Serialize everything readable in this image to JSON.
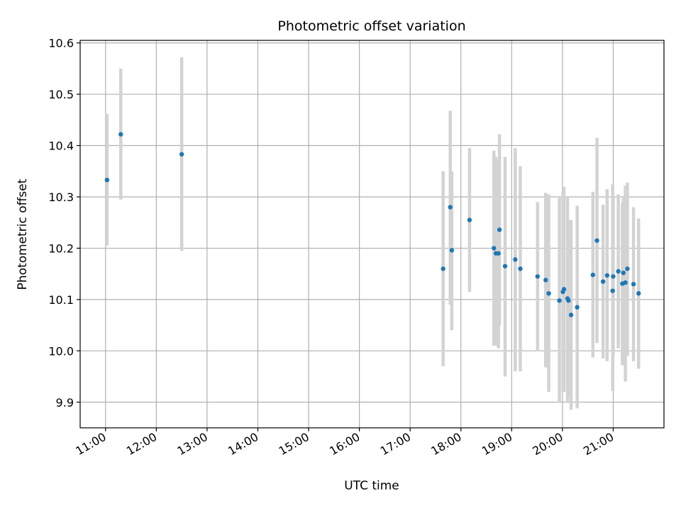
{
  "chart_data": {
    "type": "scatter",
    "title": "Photometric offset variation",
    "xlabel": "UTC time",
    "ylabel": "Photometric offset",
    "x_unit": "hours UTC",
    "xlim": [
      10.5,
      22.0
    ],
    "ylim": [
      9.85,
      10.605
    ],
    "grid": true,
    "x_ticks": [
      {
        "value": 11,
        "label": "11:00"
      },
      {
        "value": 12,
        "label": "12:00"
      },
      {
        "value": 13,
        "label": "13:00"
      },
      {
        "value": 14,
        "label": "14:00"
      },
      {
        "value": 15,
        "label": "15:00"
      },
      {
        "value": 16,
        "label": "16:00"
      },
      {
        "value": 17,
        "label": "17:00"
      },
      {
        "value": 18,
        "label": "18:00"
      },
      {
        "value": 19,
        "label": "19:00"
      },
      {
        "value": 20,
        "label": "20:00"
      },
      {
        "value": 21,
        "label": "21:00"
      }
    ],
    "y_ticks": [
      {
        "value": 9.9,
        "label": "9.9"
      },
      {
        "value": 10.0,
        "label": "10.0"
      },
      {
        "value": 10.1,
        "label": "10.1"
      },
      {
        "value": 10.2,
        "label": "10.2"
      },
      {
        "value": 10.3,
        "label": "10.3"
      },
      {
        "value": 10.4,
        "label": "10.4"
      },
      {
        "value": 10.5,
        "label": "10.5"
      },
      {
        "value": 10.6,
        "label": "10.6"
      }
    ],
    "colors": {
      "point": "#1f77b4",
      "errorbar": "#d3d3d3",
      "grid": "#b0b0b0"
    },
    "points": [
      {
        "x": 11.03,
        "y": 10.333,
        "ylo": 10.205,
        "yhi": 10.462
      },
      {
        "x": 11.3,
        "y": 10.422,
        "ylo": 10.295,
        "yhi": 10.55
      },
      {
        "x": 12.5,
        "y": 10.383,
        "ylo": 10.195,
        "yhi": 10.572
      },
      {
        "x": 17.65,
        "y": 10.16,
        "ylo": 9.97,
        "yhi": 10.35
      },
      {
        "x": 17.79,
        "y": 10.28,
        "ylo": 10.09,
        "yhi": 10.468
      },
      {
        "x": 17.82,
        "y": 10.196,
        "ylo": 10.04,
        "yhi": 10.35
      },
      {
        "x": 18.17,
        "y": 10.255,
        "ylo": 10.115,
        "yhi": 10.395
      },
      {
        "x": 18.65,
        "y": 10.2,
        "ylo": 10.01,
        "yhi": 10.39
      },
      {
        "x": 18.69,
        "y": 10.19,
        "ylo": 10.01,
        "yhi": 10.378
      },
      {
        "x": 18.74,
        "y": 10.19,
        "ylo": 10.005,
        "yhi": 10.37
      },
      {
        "x": 18.76,
        "y": 10.236,
        "ylo": 10.05,
        "yhi": 10.422
      },
      {
        "x": 18.87,
        "y": 10.165,
        "ylo": 9.95,
        "yhi": 10.378
      },
      {
        "x": 19.07,
        "y": 10.178,
        "ylo": 9.96,
        "yhi": 10.395
      },
      {
        "x": 19.17,
        "y": 10.16,
        "ylo": 9.96,
        "yhi": 10.36
      },
      {
        "x": 19.51,
        "y": 10.145,
        "ylo": 10.0,
        "yhi": 10.29
      },
      {
        "x": 19.67,
        "y": 10.138,
        "ylo": 9.968,
        "yhi": 10.308
      },
      {
        "x": 19.73,
        "y": 10.112,
        "ylo": 9.92,
        "yhi": 10.305
      },
      {
        "x": 19.94,
        "y": 10.098,
        "ylo": 9.9,
        "yhi": 10.298
      },
      {
        "x": 20.01,
        "y": 10.115,
        "ylo": 9.92,
        "yhi": 10.31
      },
      {
        "x": 20.03,
        "y": 10.12,
        "ylo": 9.92,
        "yhi": 10.32
      },
      {
        "x": 20.1,
        "y": 10.102,
        "ylo": 9.9,
        "yhi": 10.3
      },
      {
        "x": 20.12,
        "y": 10.098,
        "ylo": 9.91,
        "yhi": 10.255
      },
      {
        "x": 20.17,
        "y": 10.07,
        "ylo": 9.885,
        "yhi": 10.255
      },
      {
        "x": 20.29,
        "y": 10.085,
        "ylo": 9.888,
        "yhi": 10.283
      },
      {
        "x": 20.6,
        "y": 10.148,
        "ylo": 9.987,
        "yhi": 10.31
      },
      {
        "x": 20.68,
        "y": 10.215,
        "ylo": 10.015,
        "yhi": 10.415
      },
      {
        "x": 20.8,
        "y": 10.135,
        "ylo": 9.985,
        "yhi": 10.285
      },
      {
        "x": 20.88,
        "y": 10.147,
        "ylo": 9.98,
        "yhi": 10.315
      },
      {
        "x": 20.99,
        "y": 10.117,
        "ylo": 9.922,
        "yhi": 10.325
      },
      {
        "x": 21.0,
        "y": 10.145,
        "ylo": 9.99,
        "yhi": 10.3
      },
      {
        "x": 21.1,
        "y": 10.155,
        "ylo": 10.005,
        "yhi": 10.305
      },
      {
        "x": 21.18,
        "y": 10.131,
        "ylo": 9.972,
        "yhi": 10.288
      },
      {
        "x": 21.2,
        "y": 10.152,
        "ylo": 9.98,
        "yhi": 10.298
      },
      {
        "x": 21.24,
        "y": 10.133,
        "ylo": 9.94,
        "yhi": 10.322
      },
      {
        "x": 21.28,
        "y": 10.16,
        "ylo": 9.99,
        "yhi": 10.328
      },
      {
        "x": 21.4,
        "y": 10.13,
        "ylo": 9.98,
        "yhi": 10.28
      },
      {
        "x": 21.5,
        "y": 10.112,
        "ylo": 9.965,
        "yhi": 10.258
      }
    ]
  }
}
